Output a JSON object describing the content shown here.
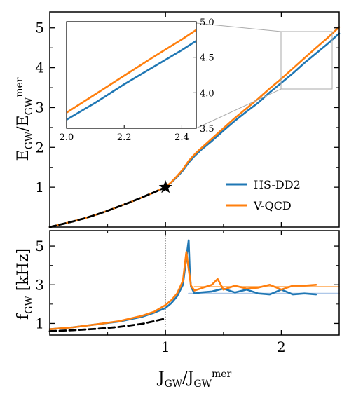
{
  "chart_data": [
    {
      "type": "line",
      "panel": "top",
      "ylabel_html": "E<tspan font-size='14' dy='6'>GW</tspan><tspan dy='-6'>/E</tspan><tspan font-size='14' dy='6'>GW</tspan><tspan font-size='14' dy='-14'>mer</tspan>",
      "xlim": [
        0,
        2.5
      ],
      "ylim": [
        0,
        5.4
      ],
      "yticks": [
        1,
        2,
        3,
        4,
        5
      ],
      "ytick_labels": [
        "1",
        "2",
        "3",
        "4",
        "5"
      ],
      "series": [
        {
          "name": "HS-DD2",
          "color": "#1f77b4",
          "x": [
            0.0,
            0.1,
            0.2,
            0.3,
            0.4,
            0.5,
            0.6,
            0.7,
            0.8,
            0.9,
            1.0,
            1.05,
            1.1,
            1.15,
            1.2,
            1.25,
            1.3,
            1.4,
            1.5,
            1.6,
            1.7,
            1.8,
            1.9,
            2.0,
            2.1,
            2.2,
            2.3,
            2.4,
            2.5
          ],
          "y": [
            0.0,
            0.07,
            0.14,
            0.22,
            0.31,
            0.41,
            0.52,
            0.63,
            0.75,
            0.87,
            1.0,
            1.12,
            1.26,
            1.42,
            1.62,
            1.78,
            1.92,
            2.16,
            2.42,
            2.67,
            2.9,
            3.12,
            3.38,
            3.62,
            3.86,
            4.12,
            4.36,
            4.6,
            4.86
          ]
        },
        {
          "name": "V-QCD",
          "color": "#ff7f0e",
          "x": [
            0.0,
            0.1,
            0.2,
            0.3,
            0.4,
            0.5,
            0.6,
            0.7,
            0.8,
            0.9,
            1.0,
            1.05,
            1.1,
            1.15,
            1.2,
            1.25,
            1.3,
            1.4,
            1.5,
            1.6,
            1.7,
            1.8,
            1.9,
            2.0,
            2.1,
            2.2,
            2.3,
            2.4,
            2.5
          ],
          "y": [
            0.0,
            0.07,
            0.14,
            0.22,
            0.31,
            0.41,
            0.52,
            0.63,
            0.75,
            0.87,
            1.0,
            1.13,
            1.28,
            1.45,
            1.66,
            1.82,
            1.96,
            2.22,
            2.48,
            2.74,
            2.98,
            3.22,
            3.48,
            3.72,
            3.98,
            4.24,
            4.5,
            4.75,
            5.02
          ]
        },
        {
          "name": "",
          "style": "dashed",
          "color": "#000000",
          "x": [
            0.0,
            0.1,
            0.2,
            0.3,
            0.4,
            0.5,
            0.6,
            0.7,
            0.8,
            0.9,
            1.0
          ],
          "y": [
            0.0,
            0.07,
            0.14,
            0.22,
            0.31,
            0.41,
            0.52,
            0.63,
            0.75,
            0.87,
            1.0
          ]
        }
      ],
      "marker": {
        "type": "star",
        "x": 1.0,
        "y": 1.0
      },
      "legend": {
        "placement": "center-right",
        "entries": [
          "HS-DD2",
          "V-QCD"
        ]
      },
      "inset": {
        "xlim": [
          2.0,
          2.45
        ],
        "ylim": [
          3.5,
          5.0
        ],
        "xticks": [
          2.0,
          2.2,
          2.4
        ],
        "xtick_labels": [
          "2.0",
          "2.2",
          "2.4"
        ],
        "yticks": [
          3.5,
          4.0,
          4.5,
          5.0
        ],
        "ytick_labels": [
          "3.5",
          "4.0",
          "4.5",
          "5.0"
        ]
      }
    },
    {
      "type": "line",
      "panel": "bottom",
      "ylabel_html": "f<tspan font-size='14' dy='6'>GW</tspan><tspan dy='-6'> [kHz]</tspan>",
      "xlabel_html": "J<tspan font-size='14' dy='6'>GW</tspan><tspan dy='-6'>/J</tspan><tspan font-size='14' dy='6'>GW</tspan><tspan font-size='14' dy='-14'>mer</tspan>",
      "xlim": [
        0,
        2.5
      ],
      "ylim": [
        0.4,
        5.8
      ],
      "xticks": [
        1,
        2
      ],
      "xtick_labels": [
        "1",
        "2"
      ],
      "yticks": [
        1,
        3,
        5
      ],
      "ytick_labels": [
        "1",
        "3",
        "5"
      ],
      "series": [
        {
          "name": "HS-DD2",
          "color": "#1f77b4",
          "x": [
            0.0,
            0.2,
            0.4,
            0.6,
            0.8,
            0.9,
            1.0,
            1.05,
            1.1,
            1.15,
            1.18,
            1.2,
            1.21,
            1.22,
            1.25,
            1.3,
            1.4,
            1.5,
            1.6,
            1.7,
            1.8,
            1.9,
            2.0,
            2.1,
            2.2,
            2.3
          ],
          "y": [
            0.7,
            0.8,
            0.95,
            1.1,
            1.35,
            1.55,
            1.8,
            2.05,
            2.4,
            3.0,
            4.4,
            5.3,
            3.6,
            2.9,
            2.55,
            2.6,
            2.65,
            2.8,
            2.6,
            2.75,
            2.55,
            2.5,
            2.75,
            2.5,
            2.55,
            2.5
          ]
        },
        {
          "name": "V-QCD",
          "color": "#ff7f0e",
          "x": [
            0.0,
            0.2,
            0.4,
            0.6,
            0.8,
            0.9,
            1.0,
            1.05,
            1.1,
            1.15,
            1.18,
            1.2,
            1.22,
            1.25,
            1.3,
            1.35,
            1.4,
            1.45,
            1.5,
            1.6,
            1.7,
            1.8,
            1.9,
            2.0,
            2.1,
            2.2,
            2.3
          ],
          "y": [
            0.7,
            0.8,
            0.95,
            1.12,
            1.4,
            1.6,
            1.95,
            2.2,
            2.55,
            3.2,
            4.7,
            3.8,
            2.95,
            2.7,
            2.8,
            2.9,
            3.0,
            3.3,
            2.75,
            2.95,
            2.8,
            2.85,
            3.0,
            2.75,
            2.95,
            2.95,
            3.0
          ]
        },
        {
          "name": "",
          "style": "dashed",
          "color": "#000000",
          "x": [
            0.0,
            0.2,
            0.4,
            0.6,
            0.8,
            1.0
          ],
          "y": [
            0.6,
            0.65,
            0.72,
            0.82,
            0.98,
            1.25
          ]
        },
        {
          "name": "",
          "style": "light",
          "color": "#aec7e8",
          "x": [
            1.2,
            2.5
          ],
          "y": [
            2.55,
            2.55
          ]
        },
        {
          "name": "",
          "style": "light",
          "color": "#ffbb78",
          "x": [
            1.25,
            2.5
          ],
          "y": [
            2.9,
            2.9
          ]
        }
      ],
      "vline_x": 1.0
    }
  ]
}
